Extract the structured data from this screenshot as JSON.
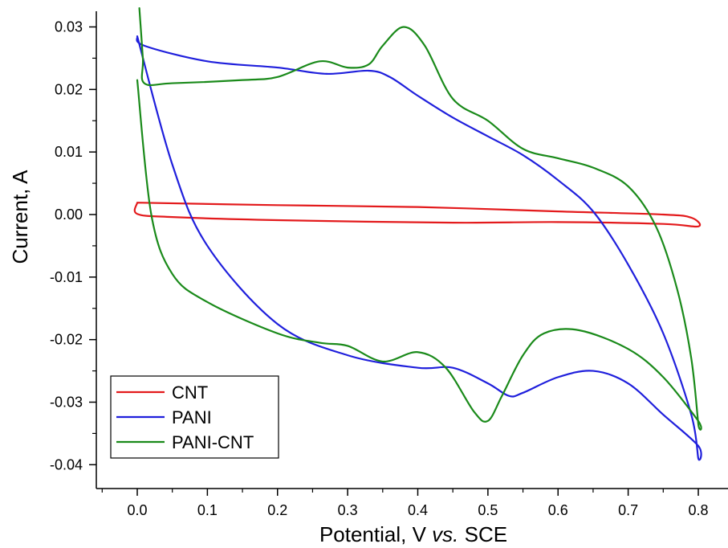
{
  "chart_data": {
    "type": "line",
    "title": "",
    "xlabel": "Potential, V vs. SCE",
    "xlabel_parts": {
      "before": "Potential, V ",
      "italic": "vs.",
      "after": " SCE"
    },
    "ylabel": "Current, A",
    "xlim": [
      -0.05,
      0.82
    ],
    "ylim": [
      -0.042,
      0.032
    ],
    "xticks": [
      {
        "value": 0.0,
        "label": "0.0"
      },
      {
        "value": 0.1,
        "label": "0.1"
      },
      {
        "value": 0.2,
        "label": "0.2"
      },
      {
        "value": 0.3,
        "label": "0.3"
      },
      {
        "value": 0.4,
        "label": "0.4"
      },
      {
        "value": 0.5,
        "label": "0.5"
      },
      {
        "value": 0.6,
        "label": "0.6"
      },
      {
        "value": 0.7,
        "label": "0.7"
      },
      {
        "value": 0.8,
        "label": "0.8"
      }
    ],
    "yticks": [
      {
        "value": 0.03,
        "label": "0.03"
      },
      {
        "value": 0.02,
        "label": "0.02"
      },
      {
        "value": 0.01,
        "label": "0.01"
      },
      {
        "value": 0.0,
        "label": "0.00"
      },
      {
        "value": -0.01,
        "label": "-0.01"
      },
      {
        "value": -0.02,
        "label": "-0.02"
      },
      {
        "value": -0.03,
        "label": "-0.03"
      },
      {
        "value": -0.04,
        "label": "-0.04"
      }
    ],
    "x_minor_step": 0.05,
    "y_minor_step": 0.005,
    "grid": false,
    "legend_position": "bottom-left",
    "series": [
      {
        "name": "CNT",
        "color": "#e31a1c",
        "points": [
          [
            0.0,
            0.0019
          ],
          [
            0.2,
            0.0015
          ],
          [
            0.4,
            0.0012
          ],
          [
            0.6,
            0.0005
          ],
          [
            0.75,
            0.0
          ],
          [
            0.79,
            -0.0005
          ],
          [
            0.8,
            -0.0019
          ],
          [
            0.75,
            -0.0015
          ],
          [
            0.6,
            -0.0012
          ],
          [
            0.45,
            -0.0013
          ],
          [
            0.2,
            -0.0009
          ],
          [
            0.05,
            -0.0004
          ],
          [
            0.0,
            0.0001
          ],
          [
            0.0,
            0.0019
          ]
        ]
      },
      {
        "name": "PANI",
        "color": "#1f1fdc",
        "points": [
          [
            0.0,
            0.0285
          ],
          [
            0.01,
            0.027
          ],
          [
            0.1,
            0.0245
          ],
          [
            0.2,
            0.0235
          ],
          [
            0.27,
            0.0225
          ],
          [
            0.33,
            0.023
          ],
          [
            0.36,
            0.022
          ],
          [
            0.4,
            0.019
          ],
          [
            0.45,
            0.0155
          ],
          [
            0.5,
            0.0125
          ],
          [
            0.55,
            0.0095
          ],
          [
            0.6,
            0.0055
          ],
          [
            0.65,
            0.0005
          ],
          [
            0.7,
            -0.008
          ],
          [
            0.75,
            -0.019
          ],
          [
            0.79,
            -0.032
          ],
          [
            0.8,
            -0.039
          ],
          [
            0.8,
            -0.037
          ],
          [
            0.75,
            -0.032
          ],
          [
            0.7,
            -0.027
          ],
          [
            0.65,
            -0.025
          ],
          [
            0.6,
            -0.026
          ],
          [
            0.55,
            -0.0285
          ],
          [
            0.53,
            -0.029
          ],
          [
            0.5,
            -0.027
          ],
          [
            0.45,
            -0.0245
          ],
          [
            0.4,
            -0.0245
          ],
          [
            0.3,
            -0.0225
          ],
          [
            0.2,
            -0.0175
          ],
          [
            0.1,
            -0.005
          ],
          [
            0.05,
            0.008
          ],
          [
            0.0,
            0.0285
          ]
        ]
      },
      {
        "name": "PANI-CNT",
        "color": "#1a8a1a",
        "points": [
          [
            0.003,
            0.033
          ],
          [
            0.008,
            0.025
          ],
          [
            0.01,
            0.021
          ],
          [
            0.05,
            0.021
          ],
          [
            0.15,
            0.0215
          ],
          [
            0.2,
            0.022
          ],
          [
            0.26,
            0.0245
          ],
          [
            0.3,
            0.0235
          ],
          [
            0.33,
            0.024
          ],
          [
            0.35,
            0.027
          ],
          [
            0.38,
            0.03
          ],
          [
            0.41,
            0.027
          ],
          [
            0.45,
            0.0185
          ],
          [
            0.5,
            0.015
          ],
          [
            0.55,
            0.0105
          ],
          [
            0.6,
            0.009
          ],
          [
            0.65,
            0.0075
          ],
          [
            0.7,
            0.0045
          ],
          [
            0.74,
            -0.002
          ],
          [
            0.77,
            -0.012
          ],
          [
            0.79,
            -0.023
          ],
          [
            0.8,
            -0.0335
          ],
          [
            0.8,
            -0.033
          ],
          [
            0.75,
            -0.026
          ],
          [
            0.7,
            -0.0215
          ],
          [
            0.63,
            -0.0185
          ],
          [
            0.58,
            -0.019
          ],
          [
            0.55,
            -0.0225
          ],
          [
            0.52,
            -0.029
          ],
          [
            0.5,
            -0.033
          ],
          [
            0.48,
            -0.0315
          ],
          [
            0.44,
            -0.0245
          ],
          [
            0.4,
            -0.022
          ],
          [
            0.35,
            -0.0235
          ],
          [
            0.3,
            -0.021
          ],
          [
            0.26,
            -0.0205
          ],
          [
            0.2,
            -0.019
          ],
          [
            0.1,
            -0.014
          ],
          [
            0.05,
            -0.0095
          ],
          [
            0.02,
            0.0
          ],
          [
            0.0,
            0.0215
          ]
        ]
      }
    ]
  }
}
